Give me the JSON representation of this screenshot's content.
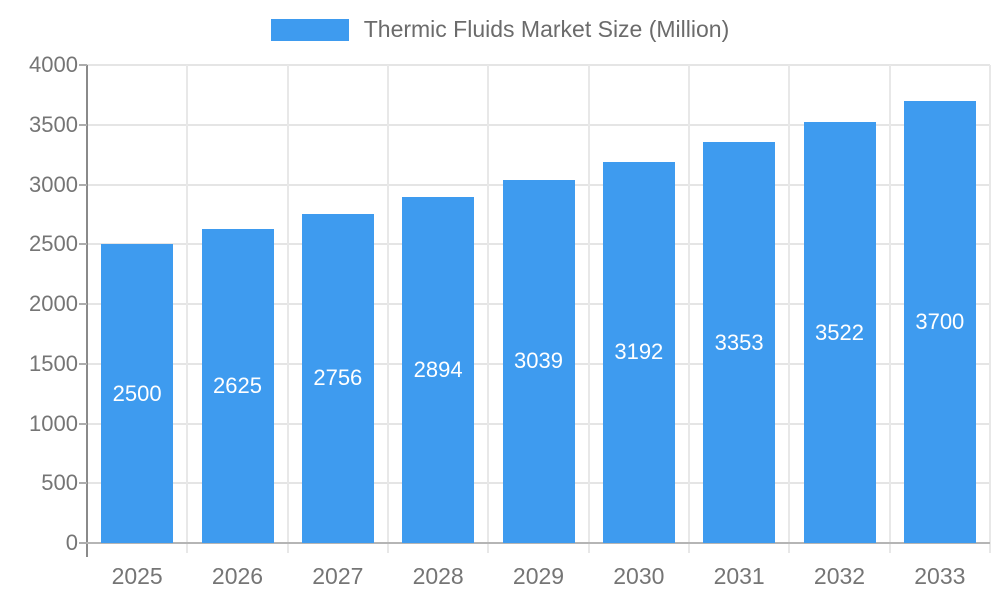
{
  "chart_data": {
    "type": "bar",
    "title": "Thermic Fluids Market Size (Million)",
    "categories": [
      "2025",
      "2026",
      "2027",
      "2028",
      "2029",
      "2030",
      "2031",
      "2032",
      "2033"
    ],
    "values": [
      2500,
      2625,
      2756,
      2894,
      3039,
      3192,
      3353,
      3522,
      3700
    ],
    "series_name": "Thermic Fluids Market Size (Million)",
    "xlabel": "",
    "ylabel": "",
    "ylim": [
      0,
      4000
    ],
    "ytick_step": 500,
    "ytick_labels": [
      "0",
      "500",
      "1000",
      "1500",
      "2000",
      "2500",
      "3000",
      "3500",
      "4000"
    ],
    "grid": true,
    "value_labels": "inside-center",
    "legend_position": "top-center",
    "bar_color": "#3E9BEF",
    "value_label_color": "#FFFFFF",
    "axis_text_color": "#757575",
    "gridline_color": "#E5E5E5",
    "baseline_color": "#B5B5B5",
    "axis_line_color": "#8A8A8A"
  }
}
